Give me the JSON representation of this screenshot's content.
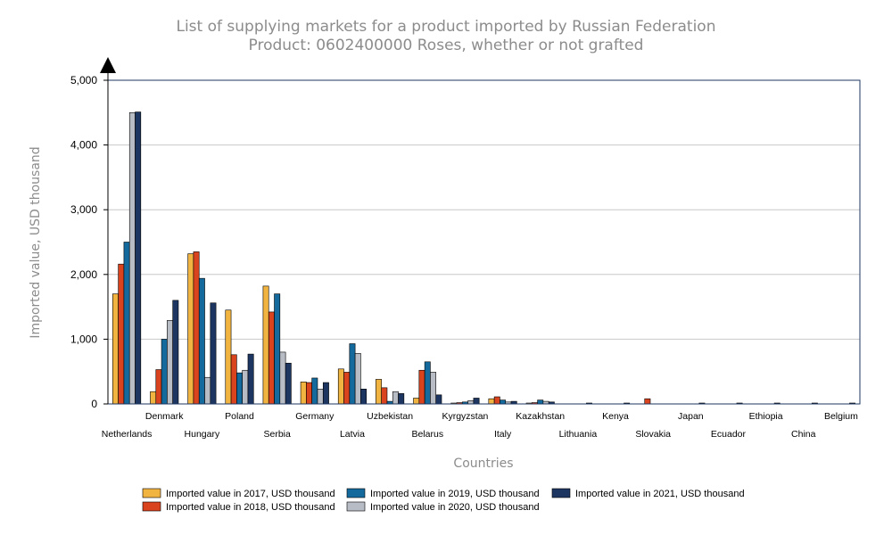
{
  "chart_data": {
    "type": "bar",
    "title": "List of supplying markets for a product imported by Russian Federation",
    "subtitle": "Product: 0602400000 Roses, whether or not grafted",
    "xlabel": "Countries",
    "ylabel": "Imported value, USD thousand",
    "ylim": [
      0,
      5000
    ],
    "yticks": [
      0,
      1000,
      2000,
      3000,
      4000,
      5000
    ],
    "ytick_labels": [
      "0",
      "1,000",
      "2,000",
      "3,000",
      "4,000",
      "5,000"
    ],
    "grid": true,
    "legend_position": "bottom",
    "categories": [
      "Netherlands",
      "Denmark",
      "Hungary",
      "Poland",
      "Serbia",
      "Germany",
      "Latvia",
      "Uzbekistan",
      "Belarus",
      "Kyrgyzstan",
      "Italy",
      "Kazakhstan",
      "Lithuania",
      "Kenya",
      "Slovakia",
      "Japan",
      "Ecuador",
      "Ethiopia",
      "China",
      "Belgium"
    ],
    "series": [
      {
        "name": "Imported value in 2017, USD thousand",
        "color": "#f2b441",
        "values": [
          1700,
          190,
          2320,
          1450,
          1820,
          340,
          540,
          380,
          90,
          10,
          80,
          10,
          0,
          0,
          0,
          0,
          0,
          0,
          0,
          0
        ]
      },
      {
        "name": "Imported value in 2018, USD thousand",
        "color": "#d9431e",
        "values": [
          2160,
          530,
          2350,
          760,
          1420,
          330,
          490,
          250,
          520,
          20,
          110,
          20,
          0,
          0,
          80,
          0,
          0,
          0,
          0,
          0
        ]
      },
      {
        "name": "Imported value in 2019, USD thousand",
        "color": "#146a9c",
        "values": [
          2500,
          1000,
          1940,
          480,
          1700,
          400,
          930,
          40,
          650,
          30,
          60,
          60,
          0,
          0,
          0,
          0,
          0,
          0,
          0,
          0
        ]
      },
      {
        "name": "Imported value in 2020, USD thousand",
        "color": "#b8bcc4",
        "values": [
          4500,
          1290,
          410,
          520,
          800,
          230,
          780,
          190,
          490,
          50,
          30,
          40,
          0,
          0,
          0,
          0,
          0,
          0,
          0,
          0
        ]
      },
      {
        "name": "Imported value in 2021, USD thousand",
        "color": "#1c3661",
        "values": [
          4510,
          1600,
          1560,
          770,
          630,
          330,
          230,
          160,
          140,
          90,
          40,
          30,
          10,
          10,
          0,
          10,
          10,
          10,
          10,
          10
        ]
      }
    ]
  }
}
